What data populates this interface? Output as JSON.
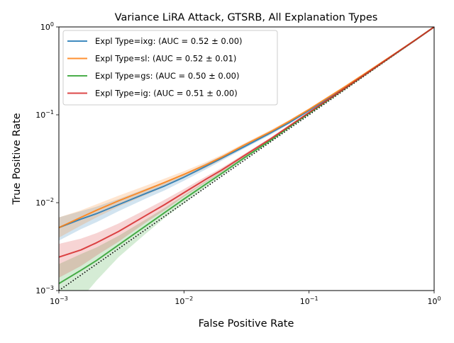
{
  "chart_data": {
    "type": "line",
    "title": "Variance LiRA Attack, GTSRB, All Explanation Types",
    "xlabel": "False Positive Rate",
    "ylabel": "True Positive Rate",
    "xscale": "log",
    "yscale": "log",
    "xlim": [
      0.001,
      1
    ],
    "ylim": [
      0.001,
      1
    ],
    "x_ticks": [
      {
        "value": 0.001,
        "label": "10",
        "exp": "−3"
      },
      {
        "value": 0.01,
        "label": "10",
        "exp": "−2"
      },
      {
        "value": 0.1,
        "label": "10",
        "exp": "−1"
      },
      {
        "value": 1,
        "label": "10",
        "exp": "0"
      }
    ],
    "y_ticks": [
      {
        "value": 0.001,
        "label": "10",
        "exp": "−3"
      },
      {
        "value": 0.01,
        "label": "10",
        "exp": "−2"
      },
      {
        "value": 0.1,
        "label": "10",
        "exp": "−1"
      },
      {
        "value": 1,
        "label": "10",
        "exp": "0"
      }
    ],
    "grid": false,
    "legend_position": "top-left",
    "chance_line": {
      "style": "dotted",
      "color": "#000000",
      "points": [
        [
          0.001,
          0.001
        ],
        [
          1,
          1
        ]
      ]
    },
    "x": [
      0.001,
      0.0015,
      0.002,
      0.003,
      0.005,
      0.007,
      0.01,
      0.015,
      0.02,
      0.03,
      0.05,
      0.07,
      0.1,
      0.2,
      0.3,
      0.5,
      0.7,
      1.0
    ],
    "series": [
      {
        "name": "Expl Type=ixg: (AUC = 0.52 ± 0.00)",
        "color": "#1f77b4",
        "values": [
          0.0052,
          0.0065,
          0.0075,
          0.0095,
          0.0128,
          0.0155,
          0.0195,
          0.026,
          0.032,
          0.043,
          0.063,
          0.082,
          0.112,
          0.21,
          0.31,
          0.505,
          0.7,
          1.0
        ],
        "lower": [
          0.0037,
          0.005,
          0.006,
          0.008,
          0.0112,
          0.0138,
          0.0178,
          0.024,
          0.03,
          0.041,
          0.06,
          0.079,
          0.108,
          0.205,
          0.305,
          0.5,
          0.695,
          1.0
        ],
        "upper": [
          0.0068,
          0.008,
          0.009,
          0.011,
          0.0145,
          0.0172,
          0.0212,
          0.028,
          0.034,
          0.045,
          0.066,
          0.085,
          0.116,
          0.215,
          0.315,
          0.51,
          0.705,
          1.0
        ]
      },
      {
        "name": "Expl Type=sl: (AUC = 0.52 ± 0.01)",
        "color": "#ff7f0e",
        "values": [
          0.0052,
          0.0068,
          0.0082,
          0.0105,
          0.014,
          0.017,
          0.021,
          0.027,
          0.033,
          0.045,
          0.065,
          0.085,
          0.115,
          0.215,
          0.315,
          0.51,
          0.705,
          1.0
        ],
        "lower": [
          0.004,
          0.0055,
          0.0068,
          0.009,
          0.0123,
          0.0152,
          0.0192,
          0.025,
          0.031,
          0.043,
          0.062,
          0.082,
          0.111,
          0.21,
          0.31,
          0.505,
          0.7,
          1.0
        ],
        "upper": [
          0.0068,
          0.0082,
          0.0096,
          0.012,
          0.0157,
          0.0188,
          0.0228,
          0.029,
          0.035,
          0.047,
          0.068,
          0.088,
          0.119,
          0.22,
          0.32,
          0.515,
          0.71,
          1.0
        ]
      },
      {
        "name": "Expl Type=gs: (AUC = 0.50 ± 0.00)",
        "color": "#2ca02c",
        "values": [
          0.0012,
          0.0017,
          0.0022,
          0.0033,
          0.0055,
          0.0077,
          0.011,
          0.0163,
          0.0215,
          0.032,
          0.052,
          0.073,
          0.104,
          0.205,
          0.305,
          0.505,
          0.7,
          1.0
        ],
        "lower": [
          0.0004,
          0.0008,
          0.0013,
          0.0024,
          0.0045,
          0.0067,
          0.0098,
          0.015,
          0.0202,
          0.0305,
          0.05,
          0.071,
          0.101,
          0.202,
          0.302,
          0.502,
          0.698,
          1.0
        ],
        "upper": [
          0.002,
          0.0026,
          0.0031,
          0.0042,
          0.0065,
          0.0087,
          0.0122,
          0.0176,
          0.0228,
          0.0335,
          0.054,
          0.075,
          0.107,
          0.208,
          0.308,
          0.508,
          0.702,
          1.0
        ]
      },
      {
        "name": "Expl Type=ig: (AUC = 0.51 ± 0.00)",
        "color": "#d62728",
        "values": [
          0.0024,
          0.0029,
          0.0035,
          0.0047,
          0.0072,
          0.0095,
          0.013,
          0.0185,
          0.0235,
          0.034,
          0.054,
          0.075,
          0.106,
          0.207,
          0.307,
          0.507,
          0.702,
          1.0
        ],
        "lower": [
          0.0014,
          0.0019,
          0.0025,
          0.0036,
          0.006,
          0.0082,
          0.0117,
          0.0171,
          0.0221,
          0.0325,
          0.052,
          0.073,
          0.103,
          0.204,
          0.304,
          0.504,
          0.699,
          1.0
        ],
        "upper": [
          0.0034,
          0.0039,
          0.0045,
          0.0058,
          0.0084,
          0.0108,
          0.0143,
          0.0199,
          0.0249,
          0.0355,
          0.056,
          0.077,
          0.109,
          0.21,
          0.31,
          0.51,
          0.705,
          1.0
        ]
      }
    ]
  }
}
